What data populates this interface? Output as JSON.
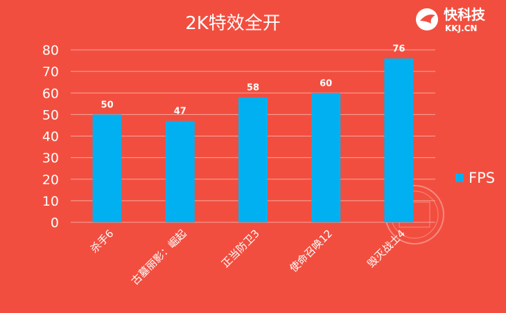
{
  "brand": {
    "name": "快科技",
    "domain": "KKJ.CN",
    "accent": "#ffffff"
  },
  "chart_data": {
    "type": "bar",
    "title": "2K特效全开",
    "categories": [
      "杀手6",
      "古墓丽影：崛起",
      "正当防卫3",
      "使命召唤12",
      "毁灭战士4"
    ],
    "series": [
      {
        "name": "FPS",
        "values": [
          50,
          47,
          58,
          60,
          76
        ],
        "color": "#00b0f0"
      }
    ],
    "yticks": [
      "0",
      "10",
      "20",
      "30",
      "40",
      "50",
      "60",
      "70",
      "80"
    ],
    "ylim": [
      0,
      80
    ],
    "grid": true,
    "legend_position": "right",
    "background": "#f24e3f"
  }
}
